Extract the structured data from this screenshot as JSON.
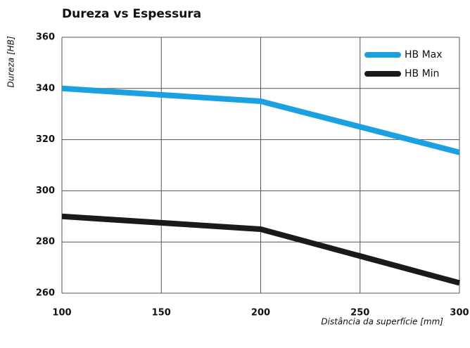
{
  "chart_data": {
    "type": "line",
    "title": "Dureza vs Espessura",
    "x_label": "Distância da superfície [mm]",
    "y_label": "Dureza [HB]",
    "x": [
      100,
      200,
      300
    ],
    "series": [
      {
        "name": "HB Max",
        "color": "#1ba1e2",
        "values": [
          340,
          335,
          315
        ]
      },
      {
        "name": "HB Min",
        "color": "#1a1a1a",
        "values": [
          290,
          285,
          264
        ]
      }
    ],
    "xlim": [
      100,
      300
    ],
    "xticks": [
      100,
      150,
      200,
      250,
      300
    ],
    "ylim": [
      260,
      360
    ],
    "yticks": [
      260,
      280,
      300,
      320,
      340,
      360
    ],
    "grid": true,
    "legend": "upper right"
  }
}
